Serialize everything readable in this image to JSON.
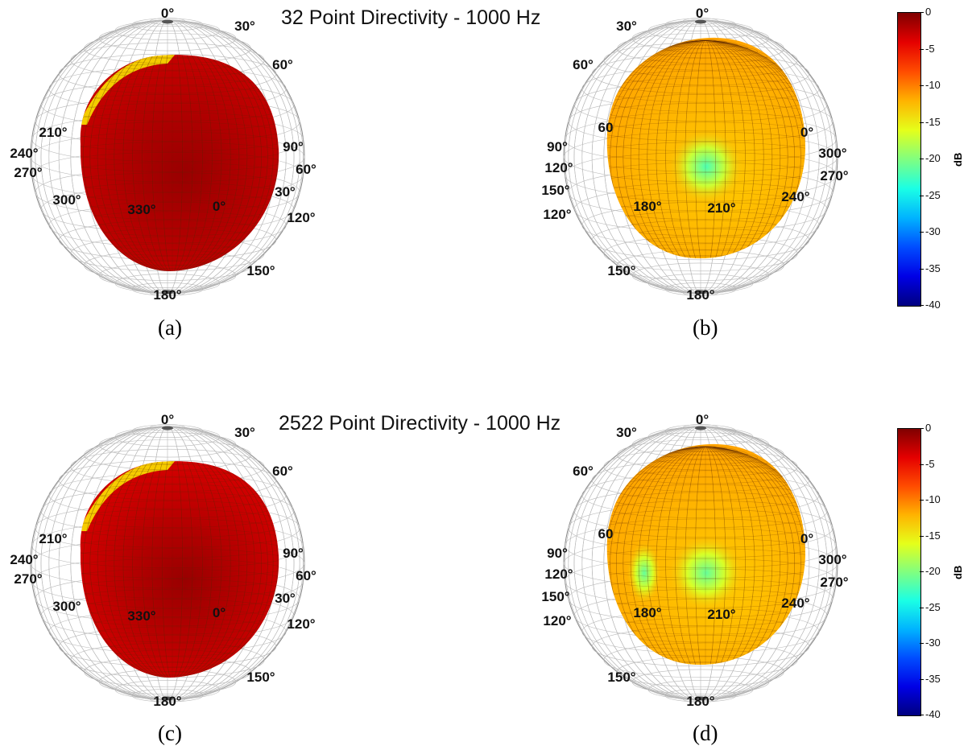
{
  "chart_data": [
    {
      "type": "heatmap",
      "title": "32 Point Directivity - 1000 Hz",
      "caption": "(a)",
      "angle_labels": [
        "0°",
        "30°",
        "60°",
        "90°",
        "60°",
        "30°",
        "120°",
        "150°",
        "180°",
        "210°",
        "240°",
        "270°",
        "300°",
        "330°",
        "0°"
      ],
      "color_level_db": -3
    },
    {
      "type": "heatmap",
      "title": "",
      "caption": "(b)",
      "angle_labels": [
        "0°",
        "30°",
        "60°",
        "60",
        "0°",
        "90°",
        "120°",
        "150°",
        "120°",
        "180°",
        "210°",
        "240°",
        "270°",
        "300°",
        "150°",
        "180°"
      ],
      "color_level_db": -12,
      "minimum_db": -22
    },
    {
      "type": "heatmap",
      "title": "2522 Point Directivity - 1000 Hz",
      "caption": "(c)",
      "angle_labels": [
        "0°",
        "30°",
        "60°",
        "90°",
        "60°",
        "30°",
        "120°",
        "150°",
        "180°",
        "210°",
        "240°",
        "270°",
        "300°",
        "330°",
        "0°"
      ],
      "color_level_db": -4
    },
    {
      "type": "heatmap",
      "title": "",
      "caption": "(d)",
      "angle_labels": [
        "0°",
        "30°",
        "60°",
        "60",
        "0°",
        "90°",
        "120°",
        "150°",
        "120°",
        "180°",
        "210°",
        "240°",
        "270°",
        "300°",
        "150°",
        "180°"
      ],
      "color_level_db": -12,
      "minimum_db": -21
    }
  ],
  "colorbar": {
    "label": "dB",
    "range": [
      -40,
      0
    ],
    "ticks": [
      "0",
      "-5",
      "-10",
      "-15",
      "-20",
      "-25",
      "-30",
      "-35",
      "-40"
    ],
    "colormap": "jet"
  }
}
